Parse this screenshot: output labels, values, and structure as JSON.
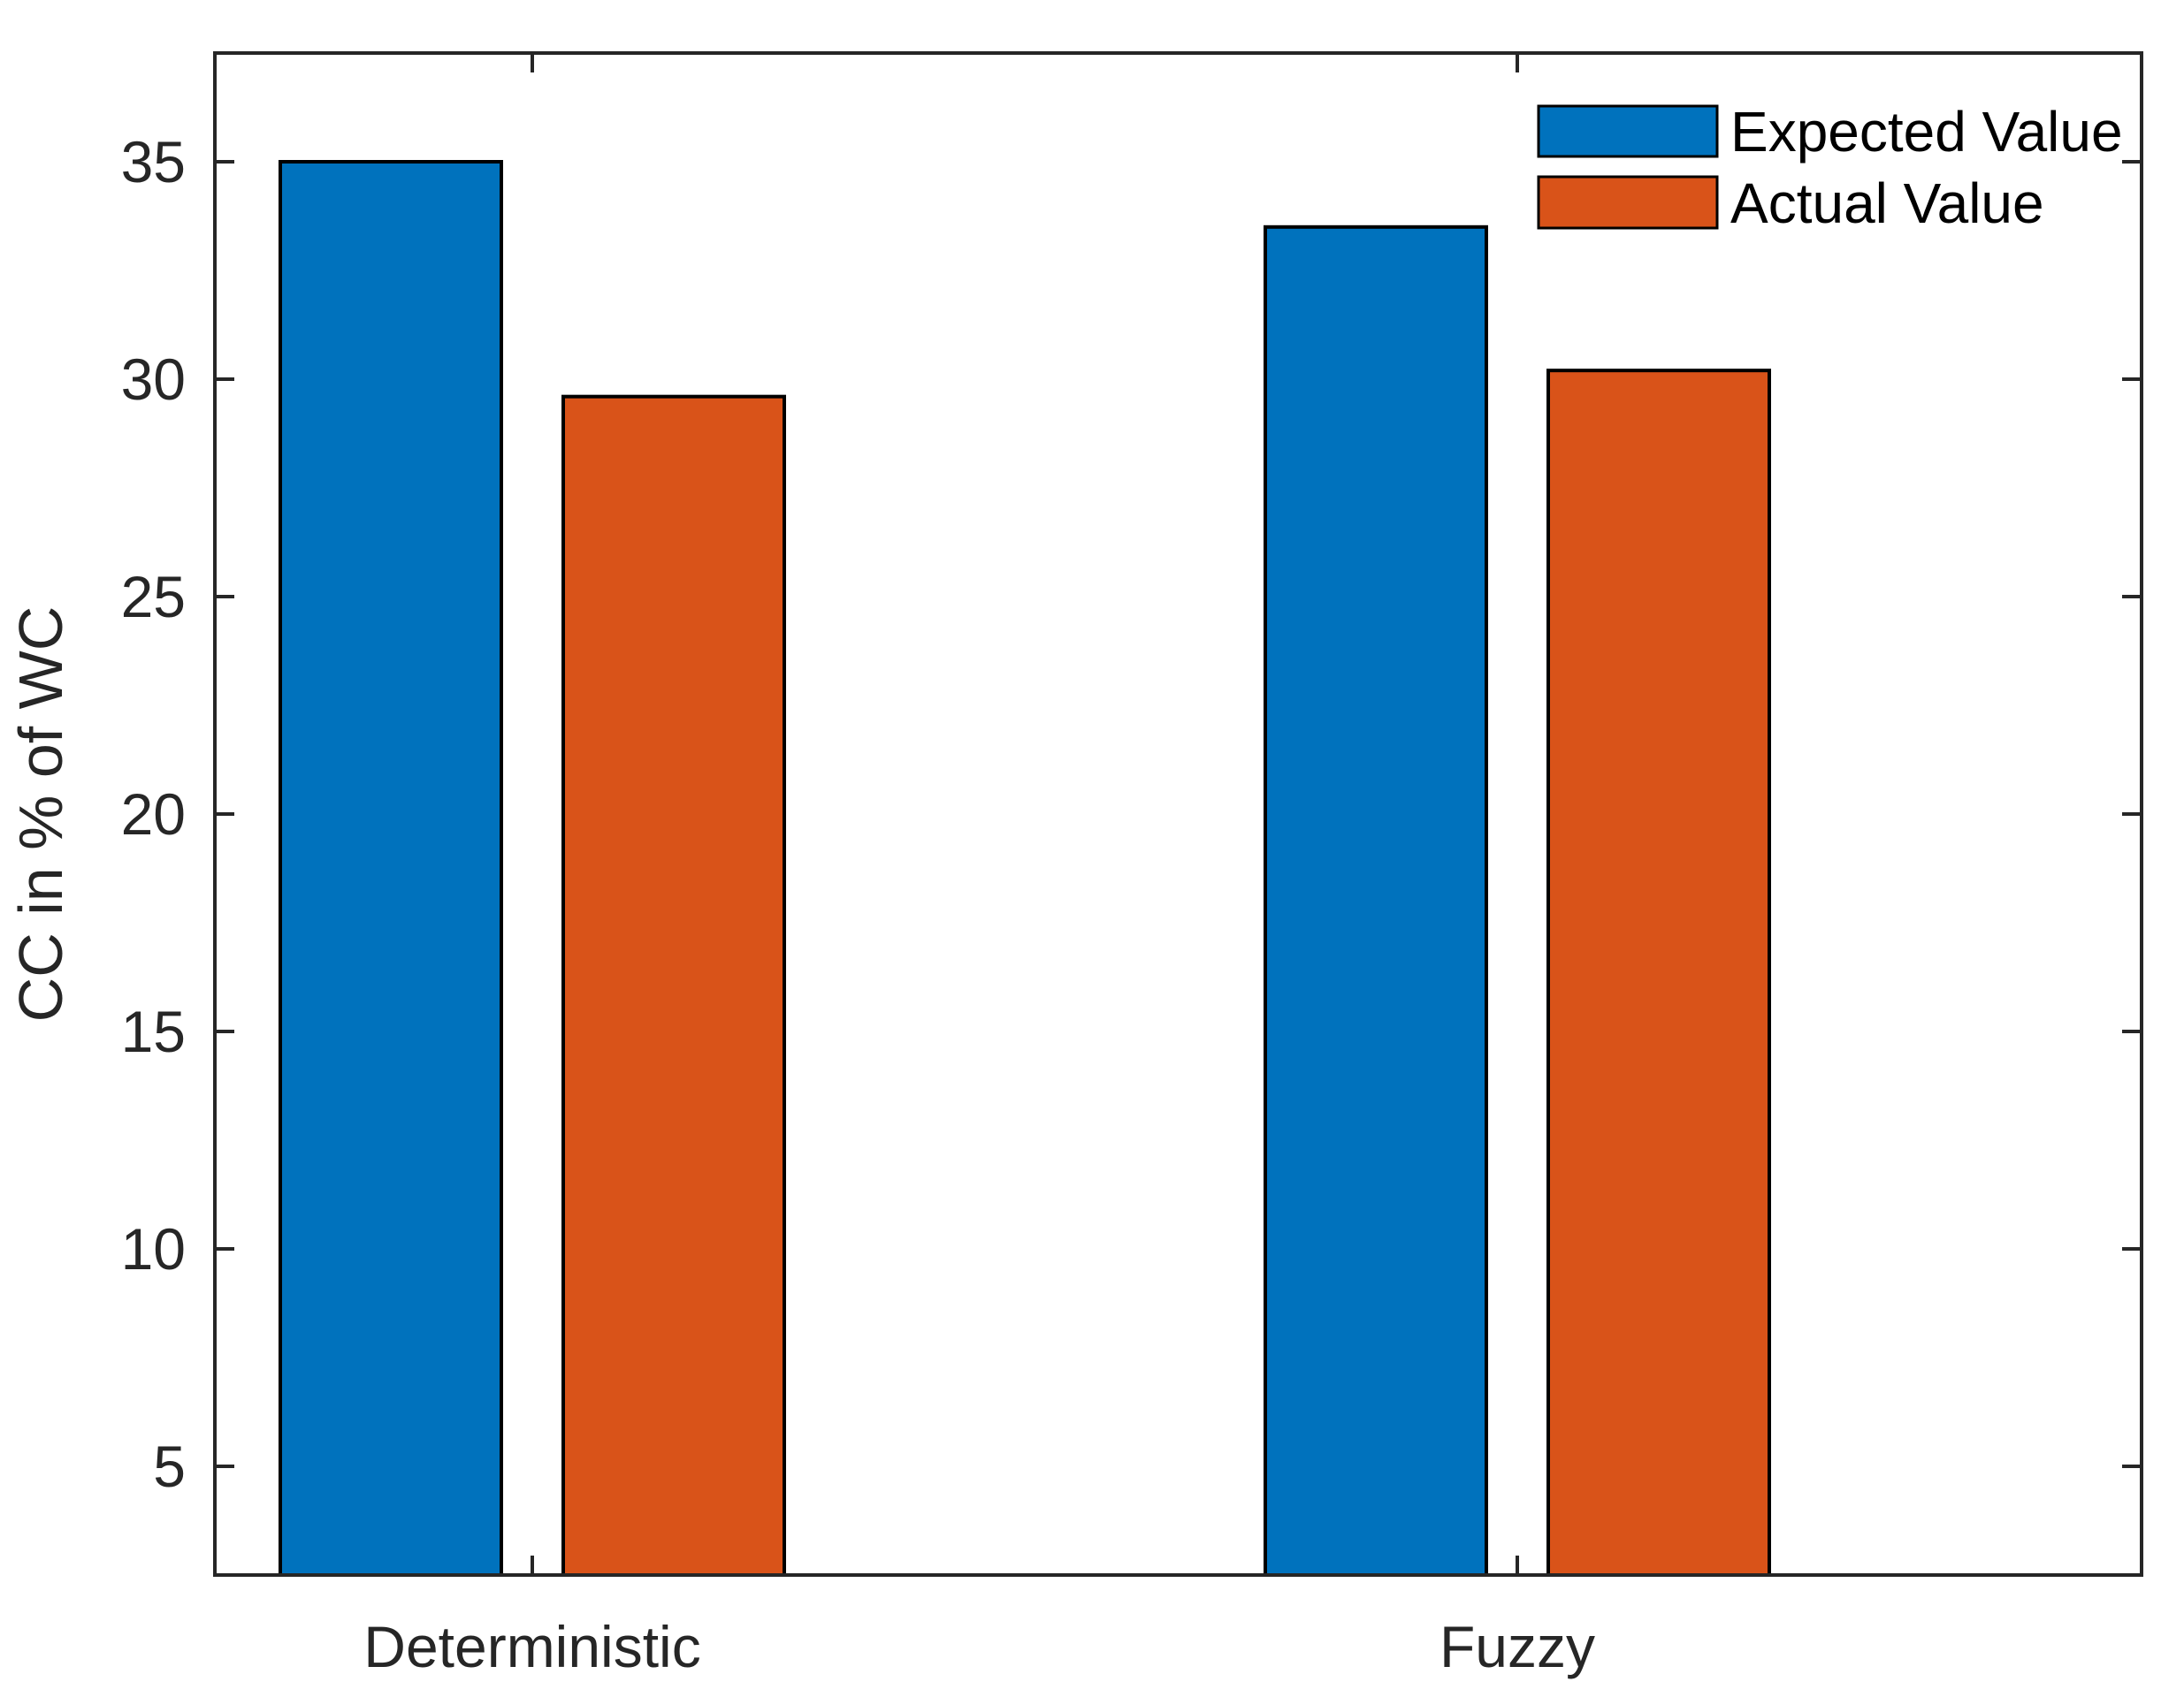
{
  "figure": {
    "background": "#ffffff"
  },
  "chart_data": {
    "type": "bar",
    "title": "",
    "xlabel": "",
    "ylabel": "CC in % of WC",
    "categories": [
      "Deterministic",
      "Fuzzy"
    ],
    "series": [
      {
        "name": "Expected Value",
        "color": "#0072BD",
        "values": [
          35.0,
          33.5
        ]
      },
      {
        "name": "Actual Value",
        "color": "#D95319",
        "values": [
          29.6,
          30.2
        ]
      }
    ],
    "yticks": [
      35,
      30,
      25,
      20,
      15,
      10,
      5
    ],
    "ylim": [
      2.5,
      37.5
    ],
    "grid": false,
    "legend": {
      "position": "top-right-inside",
      "frame": false
    },
    "bar_edge_color": "#000000",
    "axis_color": "#262626",
    "tick_direction": "in"
  }
}
